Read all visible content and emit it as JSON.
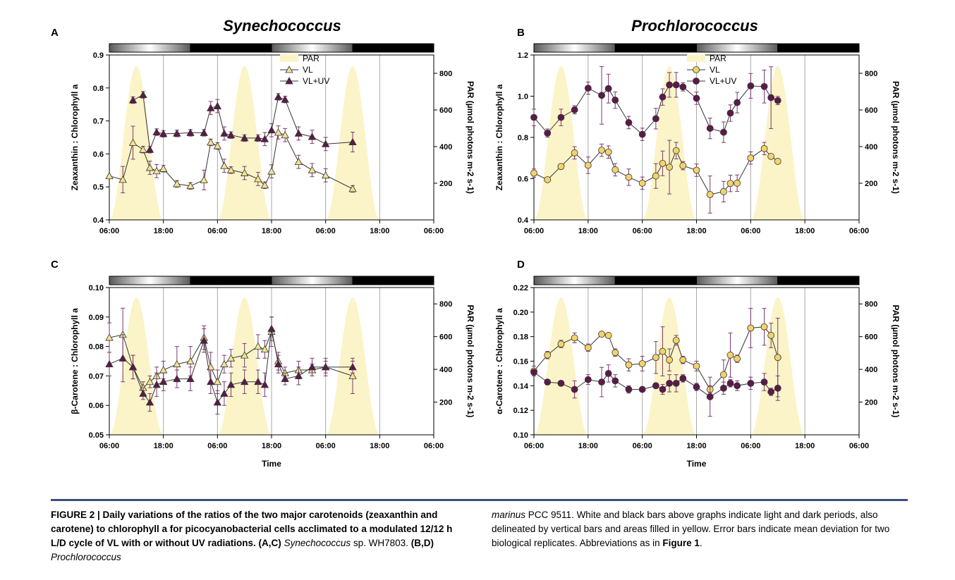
{
  "chart_data": [
    {
      "type": "line",
      "panel": "A",
      "title": "Synechococcus",
      "ylabel": "Zeaxanthin : Chlorophyll a",
      "y2label": "PAR (µmol photons m-2 s-1)",
      "ylim": [
        0.4,
        0.9
      ],
      "yticks": [
        "0.4",
        "0.5",
        "0.6",
        "0.7",
        "0.8",
        "0.9"
      ],
      "y2ticks": [
        "200",
        "400",
        "600",
        "800"
      ],
      "y2lim": [
        0,
        900
      ],
      "xlim": [
        6,
        54
      ],
      "xticks": [
        "06:00",
        "18:00",
        "06:00",
        "18:00",
        "06:00",
        "18:00",
        "06:00"
      ],
      "xlabel": "",
      "legend": [
        "PAR",
        "VL",
        "VL+UV"
      ],
      "series": [
        {
          "name": "VL",
          "marker": "triangle",
          "color": "#f2e394",
          "x": [
            6,
            8,
            9.5,
            11,
            12,
            13,
            14,
            16,
            18,
            20,
            21,
            22,
            23,
            24,
            26,
            28,
            29,
            30,
            31,
            32,
            34,
            36,
            38,
            42
          ],
          "y": [
            0.533,
            0.522,
            0.634,
            0.613,
            0.558,
            0.548,
            0.555,
            0.509,
            0.503,
            0.521,
            0.635,
            0.624,
            0.564,
            0.551,
            0.542,
            0.524,
            0.505,
            0.547,
            0.665,
            0.657,
            0.576,
            0.551,
            0.535,
            0.494
          ],
          "err": [
            0.0,
            0.04,
            0.05,
            0.01,
            0.02,
            0.02,
            0.01,
            0.01,
            0.01,
            0.03,
            0.01,
            0.01,
            0.02,
            0.01,
            0.02,
            0.02,
            0.01,
            0.02,
            0.02,
            0.02,
            0.02,
            0.02,
            0.02,
            0.01
          ]
        },
        {
          "name": "VL+UV",
          "marker": "triangle",
          "color": "#5c1a4a",
          "x": [
            9.5,
            11,
            12,
            13,
            14,
            16,
            18,
            20,
            21,
            22,
            23,
            24,
            26,
            28,
            29,
            30,
            31,
            32,
            34,
            36,
            38,
            42
          ],
          "y": [
            0.763,
            0.779,
            0.613,
            0.666,
            0.661,
            0.662,
            0.664,
            0.664,
            0.739,
            0.745,
            0.662,
            0.657,
            0.648,
            0.648,
            0.645,
            0.672,
            0.773,
            0.765,
            0.662,
            0.652,
            0.63,
            0.636
          ],
          "err": [
            0.01,
            0.01,
            0.01,
            0.01,
            0.01,
            0.01,
            0.01,
            0.01,
            0.02,
            0.02,
            0.02,
            0.01,
            0.01,
            0.01,
            0.02,
            0.02,
            0.01,
            0.01,
            0.02,
            0.02,
            0.02,
            0.03
          ]
        }
      ]
    },
    {
      "type": "line",
      "panel": "B",
      "title": "Prochlorococcus",
      "ylabel": "Zeaxanthin : Chlorophyll a",
      "y2label": "PAR (µmol photons m-2 s-1)",
      "ylim": [
        0.4,
        1.2
      ],
      "yticks": [
        "0.4",
        "0.6",
        "0.8",
        "1.0",
        "1.2"
      ],
      "y2ticks": [
        "200",
        "400",
        "600",
        "800"
      ],
      "y2lim": [
        0,
        900
      ],
      "xlim": [
        6,
        54
      ],
      "xticks": [
        "06:00",
        "18:00",
        "06:00",
        "18:00",
        "06:00",
        "18:00",
        "06:00"
      ],
      "xlabel": "",
      "legend": [
        "PAR",
        "VL",
        "VL+UV"
      ],
      "series": [
        {
          "name": "VL",
          "marker": "circle",
          "color": "#f2d36b",
          "x": [
            6,
            8,
            10,
            12,
            14,
            16,
            17,
            18,
            20,
            22,
            24,
            25,
            26,
            27,
            28,
            30,
            32,
            34,
            35,
            36,
            38,
            40,
            41,
            42
          ],
          "y": [
            0.627,
            0.595,
            0.659,
            0.725,
            0.665,
            0.738,
            0.729,
            0.643,
            0.607,
            0.578,
            0.613,
            0.674,
            0.656,
            0.736,
            0.663,
            0.641,
            0.523,
            0.537,
            0.577,
            0.578,
            0.7,
            0.746,
            0.708,
            0.684
          ],
          "err": [
            0.02,
            0.01,
            0.01,
            0.03,
            0.04,
            0.03,
            0.03,
            0.03,
            0.04,
            0.03,
            0.06,
            0.06,
            0.13,
            0.04,
            0.02,
            0.03,
            0.09,
            0.05,
            0.04,
            0.04,
            0.03,
            0.03,
            0.01,
            0.01
          ]
        },
        {
          "name": "VL+UV",
          "marker": "circle",
          "color": "#5c1a4a",
          "x": [
            6,
            8,
            10,
            12,
            14,
            16,
            17,
            18,
            20,
            22,
            24,
            25,
            26,
            27,
            28,
            30,
            32,
            34,
            35,
            36,
            38,
            40,
            41,
            42
          ],
          "y": [
            0.897,
            0.821,
            0.897,
            0.934,
            1.039,
            1.004,
            1.037,
            0.981,
            0.872,
            0.815,
            0.891,
            0.996,
            1.055,
            1.055,
            1.045,
            0.99,
            0.844,
            0.825,
            0.918,
            0.969,
            1.05,
            1.047,
            0.993,
            0.979
          ],
          "err": [
            0.04,
            0.02,
            0.04,
            0.02,
            0.03,
            0.14,
            0.07,
            0.04,
            0.03,
            0.03,
            0.05,
            0.04,
            0.06,
            0.06,
            0.02,
            0.03,
            0.05,
            0.05,
            0.04,
            0.05,
            0.06,
            0.08,
            0.15,
            0.02
          ]
        }
      ]
    },
    {
      "type": "line",
      "panel": "C",
      "title": "",
      "ylabel": "β-Carotene : Chlorophyll a",
      "y2label": "PAR (µmol photons m-2 s-1)",
      "ylim": [
        0.05,
        0.1
      ],
      "yticks": [
        "0.05",
        "0.06",
        "0.07",
        "0.08",
        "0.09",
        "0.10"
      ],
      "y2ticks": [
        "200",
        "400",
        "600",
        "800"
      ],
      "y2lim": [
        0,
        900
      ],
      "xlim": [
        6,
        54
      ],
      "xticks": [
        "06:00",
        "18:00",
        "06:00",
        "18:00",
        "06:00",
        "18:00",
        "06:00"
      ],
      "xlabel": "Time",
      "series": [
        {
          "name": "VL",
          "marker": "triangle",
          "color": "#f2e394",
          "x": [
            6,
            8,
            9.5,
            11,
            12,
            13,
            14,
            16,
            18,
            20,
            21,
            22,
            23,
            24,
            26,
            28,
            29,
            30,
            31,
            32,
            34,
            36,
            38,
            42
          ],
          "y": [
            0.083,
            0.084,
            0.073,
            0.066,
            0.068,
            0.07,
            0.072,
            0.074,
            0.075,
            0.083,
            0.073,
            0.068,
            0.074,
            0.076,
            0.077,
            0.08,
            0.079,
            0.085,
            0.075,
            0.071,
            0.072,
            0.072,
            0.073,
            0.07
          ],
          "err": [
            0.005,
            0.009,
            0.004,
            0.002,
            0.002,
            0.003,
            0.003,
            0.006,
            0.005,
            0.004,
            0.005,
            0.004,
            0.003,
            0.003,
            0.004,
            0.004,
            0.003,
            0.005,
            0.003,
            0.002,
            0.003,
            0.002,
            0.002,
            0.006
          ]
        },
        {
          "name": "VL+UV",
          "marker": "triangle",
          "color": "#5c1a4a",
          "x": [
            6,
            8,
            9.5,
            11,
            12,
            13,
            14,
            16,
            18,
            20,
            21,
            22,
            23,
            24,
            26,
            28,
            29,
            30,
            31,
            32,
            34,
            36,
            38,
            42
          ],
          "y": [
            0.074,
            0.076,
            0.073,
            0.064,
            0.061,
            0.067,
            0.068,
            0.069,
            0.069,
            0.082,
            0.068,
            0.061,
            0.064,
            0.067,
            0.068,
            0.068,
            0.067,
            0.086,
            0.074,
            0.069,
            0.07,
            0.073,
            0.073,
            0.073
          ],
          "err": [
            0.004,
            0.008,
            0.004,
            0.002,
            0.003,
            0.004,
            0.003,
            0.003,
            0.004,
            0.004,
            0.004,
            0.004,
            0.004,
            0.004,
            0.004,
            0.004,
            0.004,
            0.004,
            0.003,
            0.002,
            0.003,
            0.003,
            0.003,
            0.002
          ]
        }
      ]
    },
    {
      "type": "line",
      "panel": "D",
      "title": "",
      "ylabel": "α-Carotene : Chlorophyll a",
      "y2label": "PAR (µmol photons m-2 s-1)",
      "ylim": [
        0.1,
        0.22
      ],
      "yticks": [
        "0.10",
        "0.12",
        "0.14",
        "0.16",
        "0.18",
        "0.20",
        "0.22"
      ],
      "y2ticks": [
        "200",
        "400",
        "600",
        "800"
      ],
      "y2lim": [
        0,
        900
      ],
      "xlim": [
        6,
        54
      ],
      "xticks": [
        "06:00",
        "18:00",
        "06:00",
        "18:00",
        "06:00",
        "18:00",
        "06:00"
      ],
      "xlabel": "Time",
      "series": [
        {
          "name": "VL",
          "marker": "circle",
          "color": "#f2d36b",
          "x": [
            6,
            8,
            10,
            12,
            14,
            16,
            17,
            18,
            20,
            22,
            24,
            25,
            26,
            27,
            28,
            30,
            32,
            34,
            35,
            36,
            38,
            40,
            41,
            42
          ],
          "y": [
            0.152,
            0.165,
            0.174,
            0.179,
            0.171,
            0.182,
            0.181,
            0.167,
            0.157,
            0.158,
            0.163,
            0.168,
            0.161,
            0.177,
            0.161,
            0.156,
            0.137,
            0.149,
            0.165,
            0.162,
            0.187,
            0.188,
            0.181,
            0.163
          ],
          "err": [
            0.004,
            0.003,
            0.003,
            0.004,
            0.003,
            0.002,
            0.002,
            0.003,
            0.005,
            0.006,
            0.013,
            0.02,
            0.009,
            0.004,
            0.003,
            0.004,
            0.003,
            0.012,
            0.018,
            0.003,
            0.016,
            0.015,
            0.01,
            0.032
          ]
        },
        {
          "name": "VL+UV",
          "marker": "circle",
          "color": "#5c1a4a",
          "x": [
            6,
            8,
            10,
            12,
            14,
            16,
            17,
            18,
            20,
            22,
            24,
            25,
            26,
            27,
            28,
            30,
            32,
            34,
            35,
            36,
            38,
            40,
            41,
            42
          ],
          "y": [
            0.151,
            0.143,
            0.142,
            0.137,
            0.145,
            0.143,
            0.15,
            0.144,
            0.137,
            0.137,
            0.14,
            0.137,
            0.142,
            0.142,
            0.146,
            0.139,
            0.131,
            0.138,
            0.142,
            0.14,
            0.142,
            0.143,
            0.135,
            0.138
          ],
          "err": [
            0.002,
            0.002,
            0.002,
            0.007,
            0.004,
            0.012,
            0.007,
            0.005,
            0.003,
            0.002,
            0.002,
            0.004,
            0.007,
            0.007,
            0.003,
            0.003,
            0.016,
            0.005,
            0.003,
            0.004,
            0.005,
            0.007,
            0.003,
            0.01
          ]
        }
      ]
    }
  ],
  "caption": {
    "left_bold": "FIGURE 2 | Daily variations of the ratios of the two major carotenoids (zeaxanthin and carotene) to chlorophyll a for picocyanobacterial cells acclimated to a modulated 12/12 h L/D cycle of VL with or without UV radiations.",
    "ref_ac": "(A,C)",
    "syn_name": "Synechococcus",
    "syn_strain": "sp. WH7803.",
    "ref_bd": "(B,D)",
    "pro_name_1": "Prochlorococcus",
    "pro_name_2": "marinus",
    "right_text": "PCC 9511. White and black bars above graphs indicate light and dark periods, also delineated by vertical bars and areas filled in yellow. Error bars indicate mean deviation for two biological replicates. Abbreviations as in",
    "fig_ref": "Figure 1",
    "end": "."
  }
}
